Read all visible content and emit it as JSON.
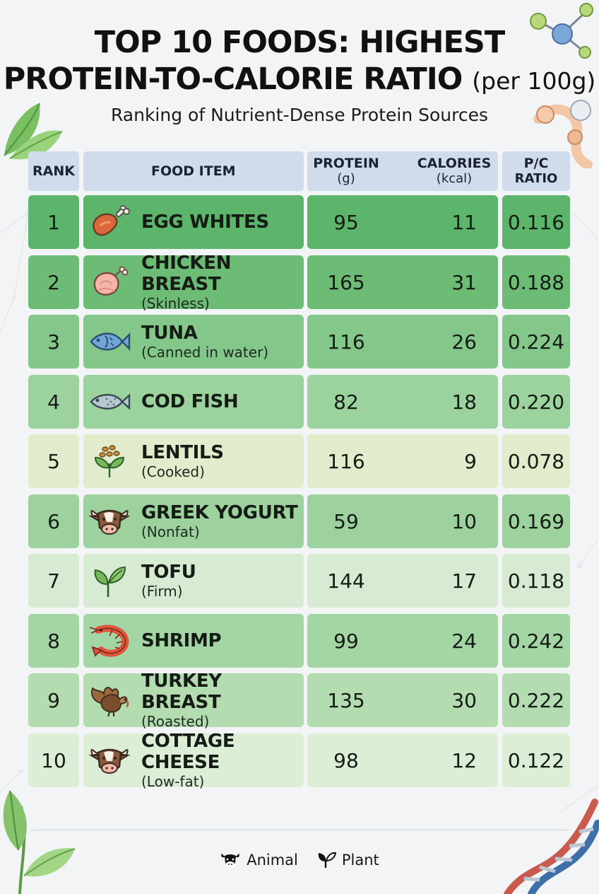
{
  "header": {
    "title_line1": "TOP 10 FOODS: HIGHEST",
    "title_line2": "PROTEIN-TO-CALORIE RATIO",
    "title_suffix": "(per 100g)",
    "subtitle": "Ranking of Nutrient-Dense Protein Sources"
  },
  "columns": {
    "rank": "RANK",
    "food": "FOOD ITEM",
    "protein": "PROTEIN",
    "protein_unit": "(g)",
    "calories": "CALORIES",
    "calories_unit": "(kcal)",
    "ratio_line1": "P/C",
    "ratio_line2": "RATIO"
  },
  "rows": [
    {
      "rank": "1",
      "name": "EGG WHITES",
      "note": "",
      "protein": "95",
      "calories": "11",
      "ratio": "0.116",
      "icon": "drumstick-icon",
      "color": "#5cb56b"
    },
    {
      "rank": "2",
      "name": "CHICKEN BREAST",
      "note": "(Skinless)",
      "protein": "165",
      "calories": "31",
      "ratio": "0.188",
      "icon": "chicken-icon",
      "color": "#6dbc76"
    },
    {
      "rank": "3",
      "name": "TUNA",
      "note": "(Canned in water)",
      "protein": "116",
      "calories": "26",
      "ratio": "0.224",
      "icon": "fish-icon",
      "color": "#84c78a"
    },
    {
      "rank": "4",
      "name": "COD FISH",
      "note": "",
      "protein": "82",
      "calories": "18",
      "ratio": "0.220",
      "icon": "cod-icon",
      "color": "#9bd29e"
    },
    {
      "rank": "5",
      "name": "LENTILS",
      "note": "(Cooked)",
      "protein": "116",
      "calories": "9",
      "ratio": "0.078",
      "icon": "lentils-icon",
      "color": "#e0eccb"
    },
    {
      "rank": "6",
      "name": "GREEK YOGURT",
      "note": "(Nonfat)",
      "protein": "59",
      "calories": "10",
      "ratio": "0.169",
      "icon": "cow-icon",
      "color": "#9dd29f"
    },
    {
      "rank": "7",
      "name": "TOFU",
      "note": "(Firm)",
      "protein": "144",
      "calories": "17",
      "ratio": "0.118",
      "icon": "leaf-icon",
      "color": "#d6ebd2"
    },
    {
      "rank": "8",
      "name": "SHRIMP",
      "note": "",
      "protein": "99",
      "calories": "24",
      "ratio": "0.242",
      "icon": "shrimp-icon",
      "color": "#a3d6a4"
    },
    {
      "rank": "9",
      "name": "TURKEY BREAST",
      "note": "(Roasted)",
      "protein": "135",
      "calories": "30",
      "ratio": "0.222",
      "icon": "turkey-icon",
      "color": "#b3dcb1"
    },
    {
      "rank": "10",
      "name": "COTTAGE CHEESE",
      "note": "(Low-fat)",
      "protein": "98",
      "calories": "12",
      "ratio": "0.122",
      "icon": "cow-icon",
      "color": "#dcefd6"
    }
  ],
  "legend": {
    "animal": "Animal",
    "plant": "Plant"
  },
  "chart_data": {
    "type": "table",
    "title": "TOP 10 FOODS: HIGHEST PROTEIN-TO-CALORIE RATIO (per 100g)",
    "subtitle": "Ranking of Nutrient-Dense Protein Sources",
    "columns": [
      "RANK",
      "FOOD ITEM",
      "PROTEIN (g)",
      "CALORIES (kcal)",
      "P/C RATIO"
    ],
    "rows": [
      [
        1,
        "EGG WHITES",
        95,
        11,
        0.116
      ],
      [
        2,
        "CHICKEN BREAST (Skinless)",
        165,
        31,
        0.188
      ],
      [
        3,
        "TUNA (Canned in water)",
        116,
        26,
        0.224
      ],
      [
        4,
        "COD FISH",
        82,
        18,
        0.22
      ],
      [
        5,
        "LENTILS (Cooked)",
        116,
        9,
        0.078
      ],
      [
        6,
        "GREEK YOGURT (Nonfat)",
        59,
        10,
        0.169
      ],
      [
        7,
        "TOFU (Firm)",
        144,
        17,
        0.118
      ],
      [
        8,
        "SHRIMP",
        99,
        24,
        0.242
      ],
      [
        9,
        "TURKEY BREAST (Roasted)",
        135,
        30,
        0.222
      ],
      [
        10,
        "COTTAGE CHEESE (Low-fat)",
        98,
        12,
        0.122
      ]
    ],
    "legend": [
      "Animal",
      "Plant"
    ]
  }
}
